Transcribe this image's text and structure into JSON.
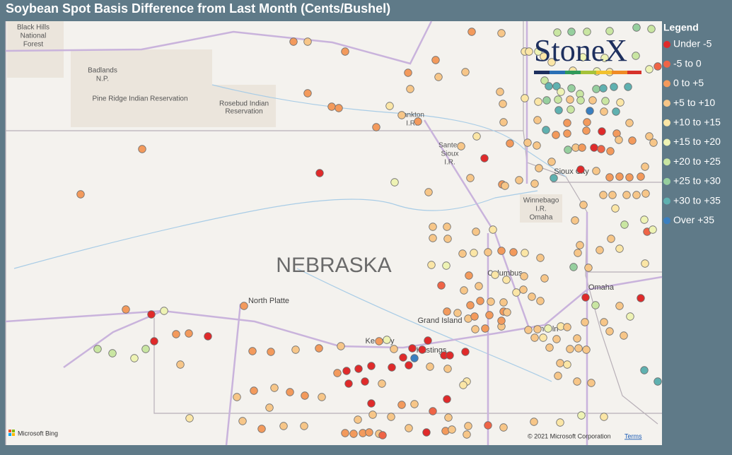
{
  "header": {
    "title": "Soybean Spot Basis Difference from Last Month (Cents/Bushel)"
  },
  "legend": {
    "title": "Legend",
    "items": [
      {
        "label": "Under -5",
        "color": "#e02a2a"
      },
      {
        "label": "-5 to 0",
        "color": "#ef6446"
      },
      {
        "label": "0 to +5",
        "color": "#f39a5c"
      },
      {
        "label": "+5 to +10",
        "color": "#f7c688"
      },
      {
        "label": "+10 to +15",
        "color": "#fbe6a6"
      },
      {
        "label": "+15 to +20",
        "color": "#eef3b4"
      },
      {
        "label": "+20 to +25",
        "color": "#c9e6a2"
      },
      {
        "label": "+25 to +30",
        "color": "#96cf9e"
      },
      {
        "label": "+30 to +35",
        "color": "#5fb1b0"
      },
      {
        "label": "Over +35",
        "color": "#3a7fc0"
      }
    ]
  },
  "logo": "StoneX",
  "map_labels": {
    "black_hills": [
      "Black Hills",
      "National",
      "Forest"
    ],
    "badlands": [
      "Badlands",
      "N.P."
    ],
    "pine_ridge": "Pine Ridge Indian Reservation",
    "rosebud": [
      "Rosebud Indian",
      "Reservation"
    ],
    "yankton": [
      "Yankton",
      "I.R."
    ],
    "santee": [
      "Santee",
      "Sioux",
      "I.R."
    ],
    "sioux_city": "Sioux City",
    "winnebago": [
      "Winnebago",
      "I.R."
    ],
    "omaha_ir": "Omaha",
    "state": "NEBRASKA",
    "north_platte": "North Platte",
    "columbus": "Columbus",
    "grand_island": "Grand Island",
    "kearney": "Kearney",
    "hastings": "Hastings",
    "lincoln": "Lincoln",
    "omaha": "Omaha"
  },
  "footer": {
    "bing": "Microsoft Bing",
    "copyright": "© 2021 Microsoft Corporation",
    "terms": "Terms"
  }
}
